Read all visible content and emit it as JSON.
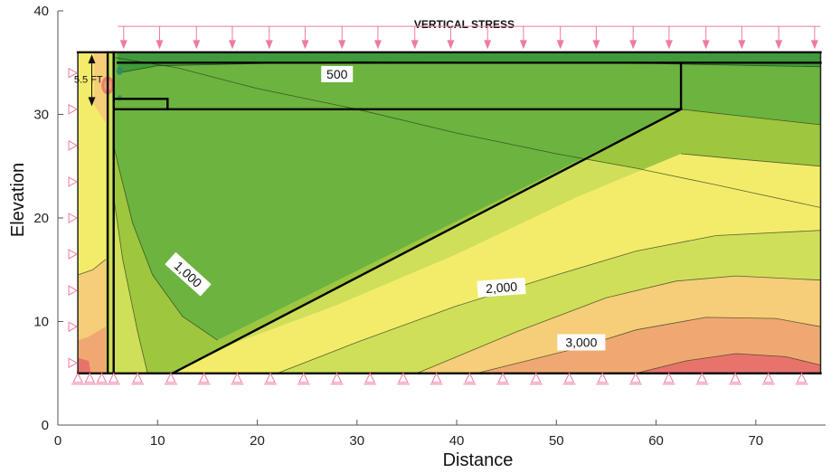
{
  "chart_data": {
    "type": "contour",
    "title": "VERTICAL STRESS",
    "xlabel": "Distance",
    "ylabel": "Elevation",
    "xlim": [
      0,
      77
    ],
    "ylim": [
      0,
      40
    ],
    "x_ticks": [
      0,
      10,
      20,
      30,
      40,
      50,
      60,
      70
    ],
    "y_ticks": [
      0,
      10,
      20,
      30,
      40
    ],
    "domain_polygon": [
      [
        2,
        5
      ],
      [
        76.5,
        5
      ],
      [
        76.5,
        36
      ],
      [
        2,
        36
      ]
    ],
    "structure_lines": [
      [
        [
          5,
          5
        ],
        [
          5,
          36
        ]
      ],
      [
        [
          5.6,
          5
        ],
        [
          5.6,
          36
        ]
      ],
      [
        [
          2,
          36
        ],
        [
          76.5,
          36
        ]
      ],
      [
        [
          6,
          35
        ],
        [
          76.5,
          35
        ]
      ],
      [
        [
          5.6,
          30.5
        ],
        [
          62.5,
          30.5
        ]
      ],
      [
        [
          62.5,
          30.5
        ],
        [
          62.5,
          35
        ]
      ],
      [
        [
          5.6,
          31.5
        ],
        [
          11,
          31.5
        ]
      ],
      [
        [
          11,
          31.5
        ],
        [
          11,
          30.5
        ]
      ],
      [
        [
          62.5,
          30.5
        ],
        [
          11.5,
          5
        ]
      ],
      [
        [
          2,
          5
        ],
        [
          76.5,
          5
        ]
      ]
    ],
    "contour_labels": [
      {
        "text": "500",
        "x": 28,
        "y": 33.8
      },
      {
        "text": "1,000",
        "x": 13,
        "y": 14.5
      },
      {
        "text": "2,000",
        "x": 44.5,
        "y": 13.2
      },
      {
        "text": "3,000",
        "x": 52.5,
        "y": 7.9
      }
    ],
    "dimension_label": {
      "text": "5.5 FT",
      "x": 1.8,
      "y": 33.4
    },
    "load_arrows_x": [
      6.6,
      10.2,
      13.9,
      17.5,
      21.2,
      24.8,
      28.5,
      32.1,
      35.8,
      39.4,
      43.1,
      46.7,
      50.4,
      54,
      57.7,
      61.3,
      65,
      68.6,
      72.3,
      75.9
    ],
    "colors": {
      "dark_green": "#3f9b3b",
      "green": "#6cb33f",
      "light_green": "#9ec63f",
      "yellow_green": "#d0df5a",
      "yellow": "#f3ec6a",
      "light_orange": "#f6cd78",
      "orange": "#f0a872",
      "red": "#e8736b",
      "load": "#f07aa0",
      "structure": "#000000"
    }
  }
}
